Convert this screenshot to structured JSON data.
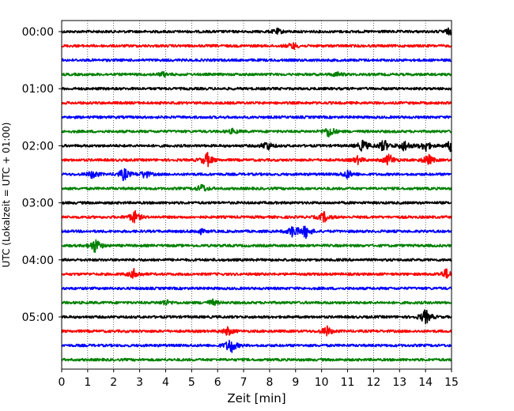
{
  "chart_data": {
    "type": "line",
    "subtype": "helicorder",
    "title": "",
    "xlabel": "Zeit  [min]",
    "ylabel": "UTC (Lokalzeit = UTC + 01:00)",
    "xlim": [
      0,
      15
    ],
    "x_ticks": [
      0,
      1,
      2,
      3,
      4,
      5,
      6,
      7,
      8,
      9,
      10,
      11,
      12,
      13,
      14,
      15
    ],
    "y_tick_labels": [
      "00:00",
      "01:00",
      "02:00",
      "03:00",
      "04:00",
      "05:00"
    ],
    "y_tick_trace_index": [
      0,
      4,
      8,
      12,
      16,
      20
    ],
    "trace_interval_min": 15,
    "trace_count": 24,
    "trace_colors": [
      "#000000",
      "#ff0000",
      "#0000ff",
      "#008000"
    ],
    "vertical_grid": "dotted",
    "events": [
      {
        "trace": 0,
        "minute": 8.3,
        "amp": 0.35
      },
      {
        "trace": 0,
        "minute": 14.9,
        "amp": 0.4
      },
      {
        "trace": 1,
        "minute": 8.9,
        "amp": 0.45
      },
      {
        "trace": 3,
        "minute": 3.9,
        "amp": 0.3
      },
      {
        "trace": 3,
        "minute": 10.6,
        "amp": 0.3
      },
      {
        "trace": 7,
        "minute": 6.6,
        "amp": 0.35
      },
      {
        "trace": 7,
        "minute": 10.3,
        "amp": 0.9
      },
      {
        "trace": 8,
        "minute": 7.9,
        "amp": 0.7
      },
      {
        "trace": 8,
        "minute": 11.6,
        "amp": 0.9
      },
      {
        "trace": 8,
        "minute": 12.4,
        "amp": 0.9
      },
      {
        "trace": 8,
        "minute": 13.2,
        "amp": 0.8
      },
      {
        "trace": 8,
        "minute": 14.0,
        "amp": 0.8
      },
      {
        "trace": 8,
        "minute": 15.0,
        "amp": 0.9
      },
      {
        "trace": 9,
        "minute": 5.6,
        "amp": 1.0
      },
      {
        "trace": 9,
        "minute": 11.4,
        "amp": 0.5
      },
      {
        "trace": 9,
        "minute": 12.6,
        "amp": 0.9
      },
      {
        "trace": 9,
        "minute": 14.1,
        "amp": 0.8
      },
      {
        "trace": 10,
        "minute": 1.2,
        "amp": 0.6
      },
      {
        "trace": 10,
        "minute": 2.4,
        "amp": 0.9
      },
      {
        "trace": 10,
        "minute": 3.2,
        "amp": 0.6
      },
      {
        "trace": 10,
        "minute": 11.0,
        "amp": 0.6
      },
      {
        "trace": 11,
        "minute": 5.4,
        "amp": 0.6
      },
      {
        "trace": 13,
        "minute": 2.8,
        "amp": 0.9
      },
      {
        "trace": 13,
        "minute": 10.1,
        "amp": 0.7
      },
      {
        "trace": 14,
        "minute": 5.3,
        "amp": 0.4
      },
      {
        "trace": 14,
        "minute": 8.9,
        "amp": 0.9
      },
      {
        "trace": 14,
        "minute": 9.4,
        "amp": 0.9
      },
      {
        "trace": 15,
        "minute": 1.3,
        "amp": 1.1
      },
      {
        "trace": 17,
        "minute": 2.8,
        "amp": 0.7
      },
      {
        "trace": 17,
        "minute": 14.8,
        "amp": 0.7
      },
      {
        "trace": 19,
        "minute": 4.0,
        "amp": 0.4
      },
      {
        "trace": 19,
        "minute": 5.8,
        "amp": 0.4
      },
      {
        "trace": 20,
        "minute": 14.0,
        "amp": 1.1
      },
      {
        "trace": 21,
        "minute": 6.4,
        "amp": 0.6
      },
      {
        "trace": 21,
        "minute": 10.2,
        "amp": 0.7
      },
      {
        "trace": 22,
        "minute": 6.5,
        "amp": 1.2
      }
    ]
  }
}
